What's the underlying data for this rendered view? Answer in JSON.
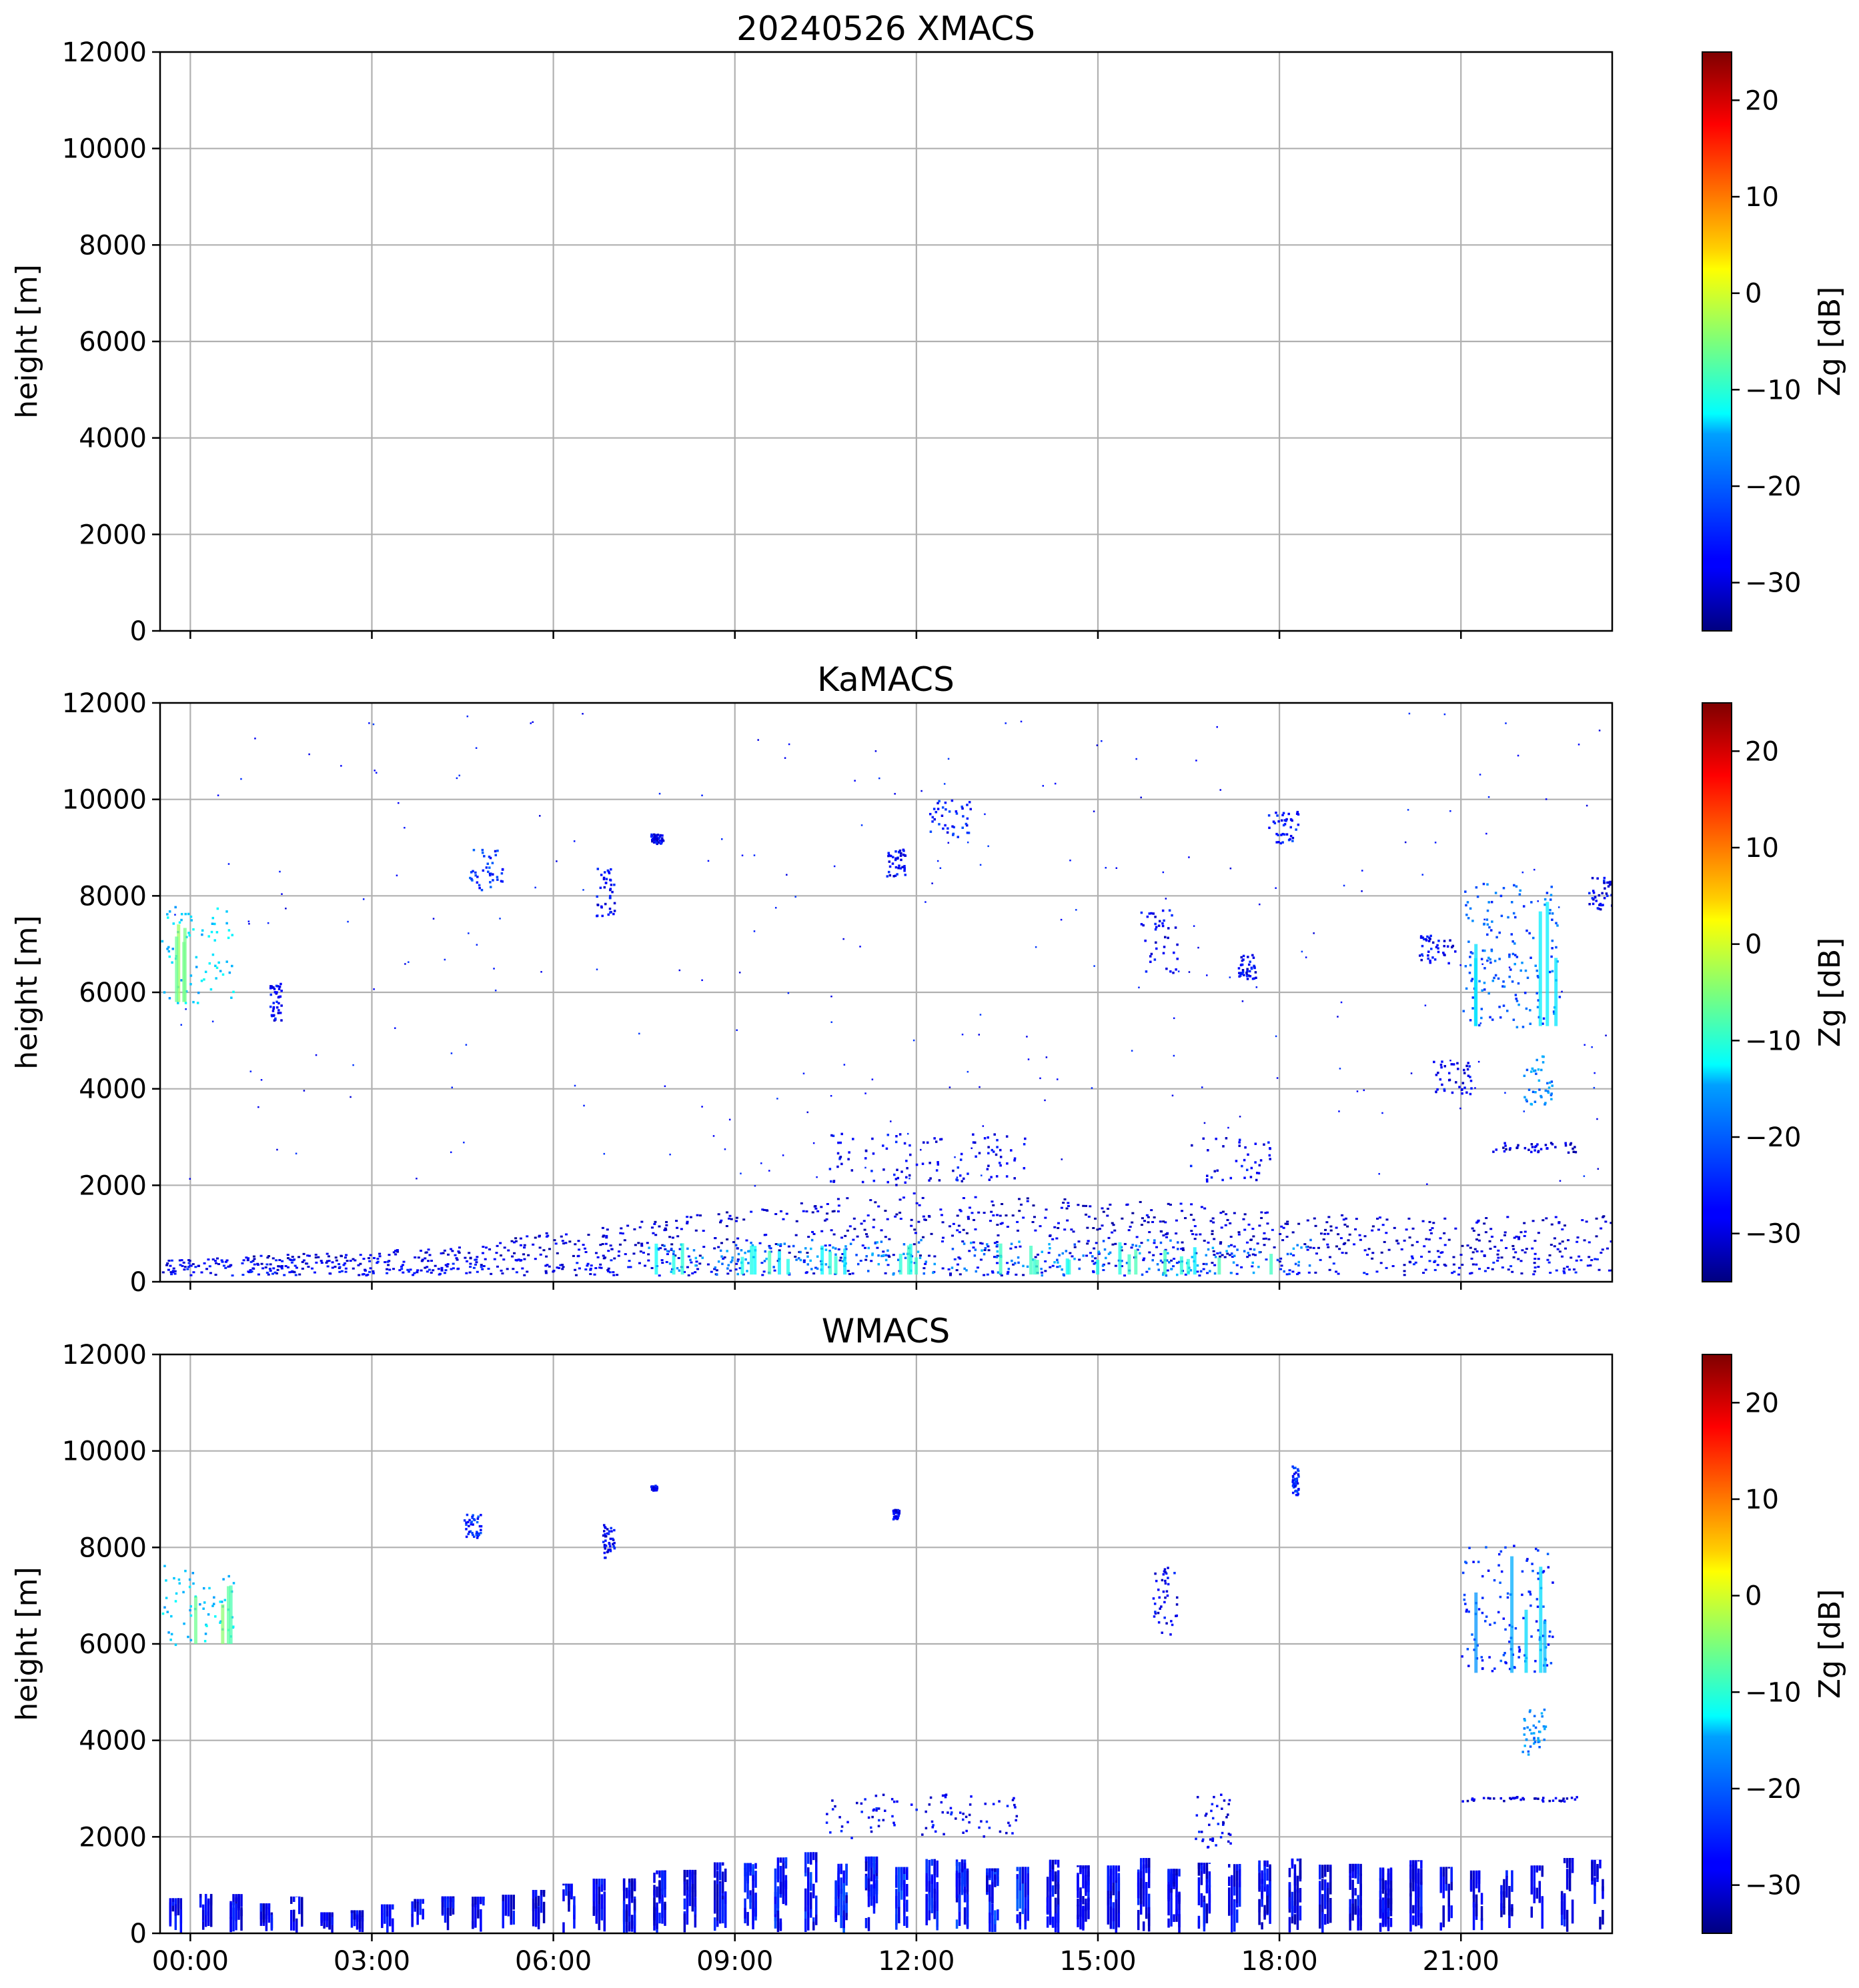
{
  "chart_data": [
    {
      "type": "heatmap",
      "title": "20240526 XMACS",
      "ylabel": "height [m]",
      "xlabel": "",
      "ylim": [
        0,
        12000
      ],
      "yticks": [
        0,
        2000,
        4000,
        6000,
        8000,
        10000,
        12000
      ],
      "xlim_hours": [
        -0.5,
        23.5
      ],
      "xticks_hours": [
        0,
        3,
        6,
        9,
        12,
        15,
        18,
        21
      ],
      "xtick_labels": [
        "00:00",
        "03:00",
        "06:00",
        "09:00",
        "12:00",
        "15:00",
        "18:00",
        "21:00"
      ],
      "show_xtick_labels": false,
      "grid": true,
      "colorbar": {
        "label": "Zg [dB]",
        "vmin": -35,
        "vmax": 25,
        "ticks": [
          -30,
          -20,
          -10,
          0,
          10,
          20
        ],
        "tick_labels": [
          "−30",
          "−20",
          "−10",
          "0",
          "10",
          "20"
        ],
        "colormap": "jet"
      },
      "features": []
    },
    {
      "type": "heatmap",
      "title": "KaMACS",
      "ylabel": "height [m]",
      "xlabel": "",
      "ylim": [
        0,
        12000
      ],
      "yticks": [
        0,
        2000,
        4000,
        6000,
        8000,
        10000,
        12000
      ],
      "xlim_hours": [
        -0.5,
        23.5
      ],
      "xticks_hours": [
        0,
        3,
        6,
        9,
        12,
        15,
        18,
        21
      ],
      "xtick_labels": [
        "00:00",
        "03:00",
        "06:00",
        "09:00",
        "12:00",
        "15:00",
        "18:00",
        "21:00"
      ],
      "show_xtick_labels": false,
      "grid": true,
      "colorbar": {
        "label": "Zg [dB]",
        "vmin": -35,
        "vmax": 25,
        "ticks": [
          -30,
          -20,
          -10,
          0,
          10,
          20
        ],
        "tick_labels": [
          "−30",
          "−20",
          "−10",
          "0",
          "10",
          "20"
        ],
        "colormap": "jet"
      },
      "features": [
        {
          "name": "boundary-layer-echo",
          "t0": -0.5,
          "t1": 23.5,
          "h0": 150,
          "h1": 2000,
          "zg": -30
        },
        {
          "name": "boundary-layer-core",
          "t0": 7.5,
          "t1": 18.5,
          "h0": 150,
          "h1": 900,
          "zg": -20
        },
        {
          "name": "midlevel-cloud-early",
          "t0": -0.5,
          "t1": 0.7,
          "h0": 5800,
          "h1": 7800,
          "zg": -15
        },
        {
          "name": "cloud-fragment",
          "t0": 1.3,
          "t1": 1.5,
          "h0": 5400,
          "h1": 6200,
          "zg": -28
        },
        {
          "name": "cloud-fragment",
          "t0": 4.6,
          "t1": 5.2,
          "h0": 8100,
          "h1": 9000,
          "zg": -25
        },
        {
          "name": "cloud-fragment",
          "t0": 6.7,
          "t1": 7.0,
          "h0": 7600,
          "h1": 8600,
          "zg": -28
        },
        {
          "name": "cloud-fragment",
          "t0": 7.6,
          "t1": 7.8,
          "h0": 9100,
          "h1": 9300,
          "zg": -28
        },
        {
          "name": "cloud-fragment",
          "t0": 12.2,
          "t1": 12.9,
          "h0": 9200,
          "h1": 10000,
          "zg": -26
        },
        {
          "name": "cloud-fragment",
          "t0": 11.5,
          "t1": 11.8,
          "h0": 8400,
          "h1": 9000,
          "zg": -28
        },
        {
          "name": "convective-tops",
          "t0": 10.5,
          "t1": 13.8,
          "h0": 2000,
          "h1": 3100,
          "zg": -28
        },
        {
          "name": "cloud-fragment",
          "t0": 15.7,
          "t1": 16.3,
          "h0": 6400,
          "h1": 7800,
          "zg": -28
        },
        {
          "name": "cloud-fragment",
          "t0": 17.3,
          "t1": 17.6,
          "h0": 6300,
          "h1": 6800,
          "zg": -28
        },
        {
          "name": "cloud-fragment",
          "t0": 17.8,
          "t1": 18.3,
          "h0": 9100,
          "h1": 9800,
          "zg": -26
        },
        {
          "name": "convective-tops",
          "t0": 16.5,
          "t1": 17.9,
          "h0": 2100,
          "h1": 3000,
          "zg": -28
        },
        {
          "name": "midlevel-cloud-late",
          "t0": 21.0,
          "t1": 22.7,
          "h0": 5300,
          "h1": 8300,
          "zg": -22
        },
        {
          "name": "cloud-fragment",
          "t0": 20.3,
          "t1": 20.9,
          "h0": 6600,
          "h1": 7200,
          "zg": -28
        },
        {
          "name": "cloud-fragment",
          "t0": 23.1,
          "t1": 23.5,
          "h0": 7700,
          "h1": 8400,
          "zg": -28
        },
        {
          "name": "cloud-fragment",
          "t0": 22.0,
          "t1": 22.5,
          "h0": 3700,
          "h1": 4700,
          "zg": -20
        },
        {
          "name": "cloud-fragment",
          "t0": 20.5,
          "t1": 21.2,
          "h0": 3900,
          "h1": 4600,
          "zg": -28
        },
        {
          "name": "thin-layer",
          "t0": 21.5,
          "t1": 22.9,
          "h0": 2700,
          "h1": 2900,
          "zg": -30
        }
      ]
    },
    {
      "type": "heatmap",
      "title": "WMACS",
      "ylabel": "height [m]",
      "xlabel": "",
      "ylim": [
        0,
        12000
      ],
      "yticks": [
        0,
        2000,
        4000,
        6000,
        8000,
        10000,
        12000
      ],
      "xlim_hours": [
        -0.5,
        23.5
      ],
      "xticks_hours": [
        0,
        3,
        6,
        9,
        12,
        15,
        18,
        21
      ],
      "xtick_labels": [
        "00:00",
        "03:00",
        "06:00",
        "09:00",
        "12:00",
        "15:00",
        "18:00",
        "21:00"
      ],
      "show_xtick_labels": true,
      "grid": true,
      "colorbar": {
        "label": "Zg [dB]",
        "vmin": -35,
        "vmax": 25,
        "ticks": [
          -30,
          -20,
          -10,
          0,
          10,
          20
        ],
        "tick_labels": [
          "−30",
          "−20",
          "−10",
          "0",
          "10",
          "20"
        ],
        "colormap": "jet"
      },
      "features": [
        {
          "name": "low-level-scan-bursts",
          "t0": -0.4,
          "t1": 23.2,
          "h0": 0,
          "h1": 1600,
          "zg": -30,
          "pattern": "periodic-bars"
        },
        {
          "name": "midlevel-cloud-early",
          "t0": -0.5,
          "t1": 0.7,
          "h0": 6000,
          "h1": 7700,
          "zg": -15
        },
        {
          "name": "cloud-fragment",
          "t0": 4.5,
          "t1": 4.8,
          "h0": 8200,
          "h1": 8700,
          "zg": -25
        },
        {
          "name": "cloud-fragment",
          "t0": 6.8,
          "t1": 7.0,
          "h0": 7800,
          "h1": 8500,
          "zg": -28
        },
        {
          "name": "cloud-fragment",
          "t0": 7.6,
          "t1": 7.7,
          "h0": 9200,
          "h1": 9300,
          "zg": -28
        },
        {
          "name": "cloud-fragment",
          "t0": 11.6,
          "t1": 11.7,
          "h0": 8600,
          "h1": 8800,
          "zg": -28
        },
        {
          "name": "cloud-fragment",
          "t0": 15.9,
          "t1": 16.3,
          "h0": 6200,
          "h1": 7600,
          "zg": -28
        },
        {
          "name": "cloud-fragment",
          "t0": 18.2,
          "t1": 18.3,
          "h0": 9100,
          "h1": 9700,
          "zg": -26
        },
        {
          "name": "convective-tops",
          "t0": 10.5,
          "t1": 13.8,
          "h0": 2000,
          "h1": 2900,
          "zg": -28
        },
        {
          "name": "convective-tops",
          "t0": 16.6,
          "t1": 17.2,
          "h0": 1800,
          "h1": 2900,
          "zg": -28
        },
        {
          "name": "midlevel-cloud-late",
          "t0": 21.0,
          "t1": 22.5,
          "h0": 5400,
          "h1": 8100,
          "zg": -25
        },
        {
          "name": "cloud-fragment",
          "t0": 22.0,
          "t1": 22.4,
          "h0": 3700,
          "h1": 4700,
          "zg": -20
        },
        {
          "name": "thin-layer",
          "t0": 21.0,
          "t1": 22.9,
          "h0": 2750,
          "h1": 2850,
          "zg": -30
        }
      ]
    }
  ]
}
